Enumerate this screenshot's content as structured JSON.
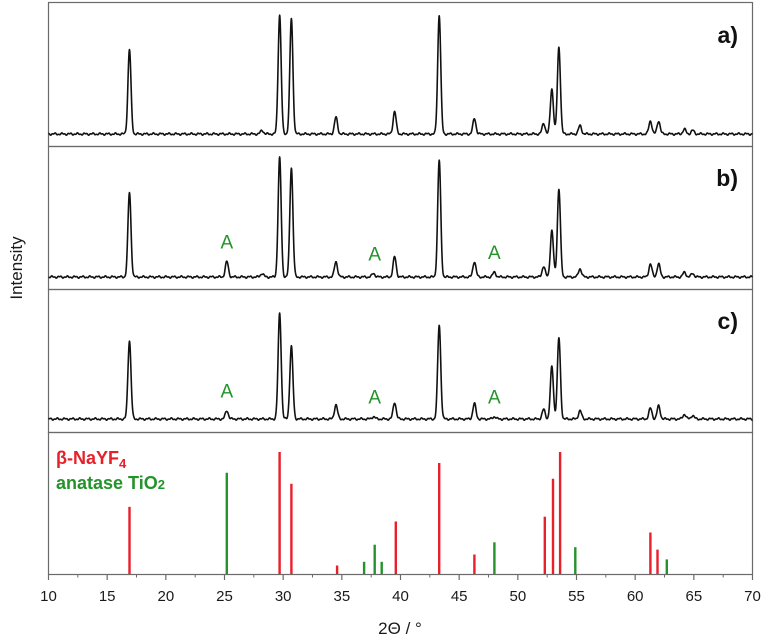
{
  "chart_data": {
    "type": "line",
    "xlabel": "2Θ / °",
    "ylabel": "Intensity",
    "xlim": [
      10,
      70
    ],
    "x_ticks": [
      10,
      15,
      20,
      25,
      30,
      35,
      40,
      45,
      50,
      55,
      60,
      65,
      70
    ],
    "grid": false,
    "panels": [
      {
        "label": "a)",
        "peaks": [
          {
            "x": 16.9,
            "h": 0.71
          },
          {
            "x": 28.2,
            "h": 0.03
          },
          {
            "x": 29.7,
            "h": 1.0
          },
          {
            "x": 30.7,
            "h": 0.97
          },
          {
            "x": 34.5,
            "h": 0.14
          },
          {
            "x": 39.5,
            "h": 0.19
          },
          {
            "x": 43.3,
            "h": 1.0
          },
          {
            "x": 46.3,
            "h": 0.13
          },
          {
            "x": 52.2,
            "h": 0.09
          },
          {
            "x": 52.9,
            "h": 0.38
          },
          {
            "x": 53.5,
            "h": 0.73
          },
          {
            "x": 55.3,
            "h": 0.07
          },
          {
            "x": 61.3,
            "h": 0.11
          },
          {
            "x": 62.0,
            "h": 0.11
          },
          {
            "x": 64.2,
            "h": 0.04
          },
          {
            "x": 64.9,
            "h": 0.03
          }
        ],
        "anatase_marks": []
      },
      {
        "label": "b)",
        "peaks": [
          {
            "x": 16.9,
            "h": 0.71
          },
          {
            "x": 25.2,
            "h": 0.13
          },
          {
            "x": 28.2,
            "h": 0.03
          },
          {
            "x": 29.7,
            "h": 1.0
          },
          {
            "x": 30.7,
            "h": 0.92
          },
          {
            "x": 34.5,
            "h": 0.13
          },
          {
            "x": 37.7,
            "h": 0.03
          },
          {
            "x": 39.5,
            "h": 0.17
          },
          {
            "x": 43.3,
            "h": 0.98
          },
          {
            "x": 46.3,
            "h": 0.13
          },
          {
            "x": 48.0,
            "h": 0.04
          },
          {
            "x": 52.2,
            "h": 0.09
          },
          {
            "x": 52.9,
            "h": 0.39
          },
          {
            "x": 53.5,
            "h": 0.74
          },
          {
            "x": 55.3,
            "h": 0.07
          },
          {
            "x": 61.3,
            "h": 0.11
          },
          {
            "x": 62.0,
            "h": 0.11
          },
          {
            "x": 64.2,
            "h": 0.04
          },
          {
            "x": 64.9,
            "h": 0.03
          }
        ],
        "anatase_marks": [
          {
            "x": 25.2,
            "text": "A"
          },
          {
            "x": 37.8,
            "text": "A"
          },
          {
            "x": 48.0,
            "text": "A"
          }
        ]
      },
      {
        "label": "c)",
        "peaks": [
          {
            "x": 16.9,
            "h": 0.66
          },
          {
            "x": 25.2,
            "h": 0.07
          },
          {
            "x": 29.7,
            "h": 0.89
          },
          {
            "x": 30.7,
            "h": 0.61
          },
          {
            "x": 34.5,
            "h": 0.12
          },
          {
            "x": 37.7,
            "h": 0.02
          },
          {
            "x": 39.5,
            "h": 0.14
          },
          {
            "x": 43.3,
            "h": 0.79
          },
          {
            "x": 46.3,
            "h": 0.13
          },
          {
            "x": 48.0,
            "h": 0.02
          },
          {
            "x": 52.2,
            "h": 0.08
          },
          {
            "x": 52.9,
            "h": 0.44
          },
          {
            "x": 53.5,
            "h": 0.68
          },
          {
            "x": 55.3,
            "h": 0.07
          },
          {
            "x": 61.3,
            "h": 0.09
          },
          {
            "x": 62.0,
            "h": 0.11
          },
          {
            "x": 64.2,
            "h": 0.04
          },
          {
            "x": 64.9,
            "h": 0.03
          }
        ],
        "anatase_marks": [
          {
            "x": 25.2,
            "text": "A"
          },
          {
            "x": 37.8,
            "text": "A"
          },
          {
            "x": 48.0,
            "text": "A"
          }
        ]
      }
    ],
    "reference_legend": {
      "nayf4_greek": "β",
      "nayf4_main": "-NaYF",
      "nayf4_sub": "4",
      "tio2_main": "anatase TiO",
      "tio2_sub": "2"
    },
    "reference_series": [
      {
        "name": "β-NaYF4",
        "color": "#e8202a",
        "lines": [
          {
            "x": 16.9,
            "y": 0.55
          },
          {
            "x": 29.7,
            "y": 1.0
          },
          {
            "x": 30.7,
            "y": 0.74
          },
          {
            "x": 34.6,
            "y": 0.07
          },
          {
            "x": 39.6,
            "y": 0.43
          },
          {
            "x": 43.3,
            "y": 0.91
          },
          {
            "x": 46.3,
            "y": 0.16
          },
          {
            "x": 52.3,
            "y": 0.47
          },
          {
            "x": 53.0,
            "y": 0.78
          },
          {
            "x": 53.6,
            "y": 1.0
          },
          {
            "x": 61.3,
            "y": 0.34
          },
          {
            "x": 61.9,
            "y": 0.2
          }
        ]
      },
      {
        "name": "anatase TiO2",
        "color": "#23932a",
        "lines": [
          {
            "x": 25.2,
            "y": 0.83
          },
          {
            "x": 36.9,
            "y": 0.1
          },
          {
            "x": 37.8,
            "y": 0.24
          },
          {
            "x": 38.4,
            "y": 0.1
          },
          {
            "x": 48.0,
            "y": 0.26
          },
          {
            "x": 54.9,
            "y": 0.22
          },
          {
            "x": 62.7,
            "y": 0.12
          }
        ]
      }
    ],
    "colors": {
      "pattern": "#111111",
      "frame": "#6a6a6a",
      "anatase_mark": "#23932a"
    }
  }
}
